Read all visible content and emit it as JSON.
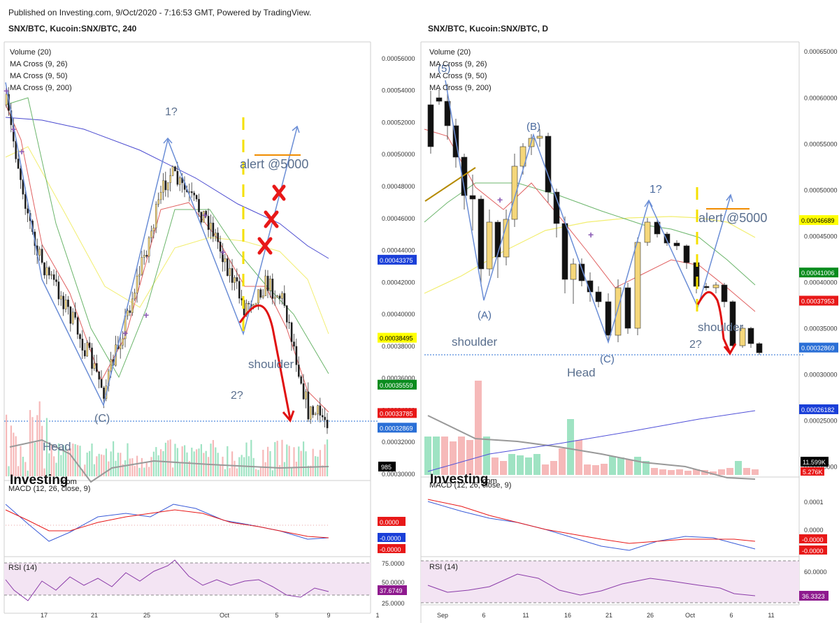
{
  "header": {
    "text": "Published on Investing.com, 9/Oct/2020 - 7:16:53 GMT, Powered by TradingView."
  },
  "chart_data": [
    {
      "type": "candlestick",
      "title": "SNX/BTC, Kucoin:SNX/BTC, 240",
      "indicators": [
        "Volume (20)",
        "MA Cross (9, 26)",
        "MA Cross (9, 50)",
        "MA Cross (9, 200)"
      ],
      "price_axis": {
        "ylim": [
          0.0003,
          0.00057
        ],
        "ticks": [
          "0.00056000",
          "0.00054000",
          "0.00052000",
          "0.00050000",
          "0.00048000",
          "0.00046000",
          "0.00044000",
          "0.00042000",
          "0.00040000",
          "0.00038000",
          "0.00036000",
          "0.00034000",
          "0.00032000",
          "0.00030000"
        ],
        "labels": [
          {
            "text": "0.00043375",
            "value": 0.00043375,
            "color": "#1a3fd8"
          },
          {
            "text": "0.00038495",
            "value": 0.00038495,
            "color": "#ffff00"
          },
          {
            "text": "0.00035559",
            "value": 0.00035559,
            "color": "#0a8c1e"
          },
          {
            "text": "0.00033785",
            "value": 0.00033785,
            "color": "#e81818"
          },
          {
            "text": "0.00032869",
            "value": 0.00032869,
            "color": "#2a6fd6"
          }
        ],
        "volume_label": "985"
      },
      "x_ticks": [
        "17",
        "21",
        "25",
        "Oct",
        "5",
        "9",
        "1"
      ],
      "annotations": [
        "1?",
        "alert @5000",
        "(C)",
        "shoulder",
        "2?",
        "Head"
      ],
      "macd": {
        "label": "MACD (12, 26, close, 9)",
        "values": [
          {
            "text": "0.0000",
            "color": "#e81818"
          },
          {
            "text": "-0.0000",
            "color": "#1a3fd8"
          },
          {
            "text": "-0.0000",
            "color": "#e81818"
          }
        ]
      },
      "rsi": {
        "label": "RSI (14)",
        "ticks": [
          "75.0000",
          "50.0000",
          "25.0000"
        ],
        "value": "37.6749"
      },
      "watermark": {
        "main": "Investing",
        "suffix": ".com"
      }
    },
    {
      "type": "candlestick",
      "title": "SNX/BTC, Kucoin:SNX/BTC, D",
      "indicators": [
        "Volume (20)",
        "MA Cross (9, 26)",
        "MA Cross (9, 50)",
        "MA Cross (9, 200)"
      ],
      "price_axis": {
        "ylim": [
          0.00023,
          0.00066
        ],
        "ticks": [
          "0.00065000",
          "0.00060000",
          "0.00055000",
          "0.00050000",
          "0.00045000",
          "0.00040000",
          "0.00035000",
          "0.00030000",
          "0.00025000",
          "0.00020000"
        ],
        "labels": [
          {
            "text": "0.00046689",
            "value": 0.00046689,
            "color": "#ffff00"
          },
          {
            "text": "0.00041006",
            "value": 0.00041006,
            "color": "#0a8c1e"
          },
          {
            "text": "0.00037953",
            "value": 0.00037953,
            "color": "#e81818"
          },
          {
            "text": "0.00032869",
            "value": 0.00032869,
            "color": "#2a6fd6"
          },
          {
            "text": "0.00026182",
            "value": 0.00026182,
            "color": "#1a3fd8"
          }
        ],
        "volume_label": "11.599K",
        "volume_label2": "5.276K"
      },
      "x_ticks": [
        "Sep",
        "6",
        "11",
        "16",
        "21",
        "26",
        "Oct",
        "6",
        "11"
      ],
      "annotations": [
        "(5)",
        "(B)",
        "1?",
        "alert @5000",
        "(A)",
        "shoulder",
        "Head",
        "(C)",
        "shoulder",
        "2?"
      ],
      "macd": {
        "label": "MACD (12, 26, close, 9)",
        "ticks": [
          "0.0001",
          "0.0000"
        ],
        "values": [
          {
            "text": "-0.0000",
            "color": "#e81818"
          },
          {
            "text": "-0.0000",
            "color": "#e81818"
          }
        ]
      },
      "rsi": {
        "label": "RSI (14)",
        "ticks": [
          "60.0000",
          "40.0000"
        ],
        "value": "36.3323"
      },
      "watermark": {
        "main": "Investing",
        "suffix": ".com"
      }
    }
  ]
}
